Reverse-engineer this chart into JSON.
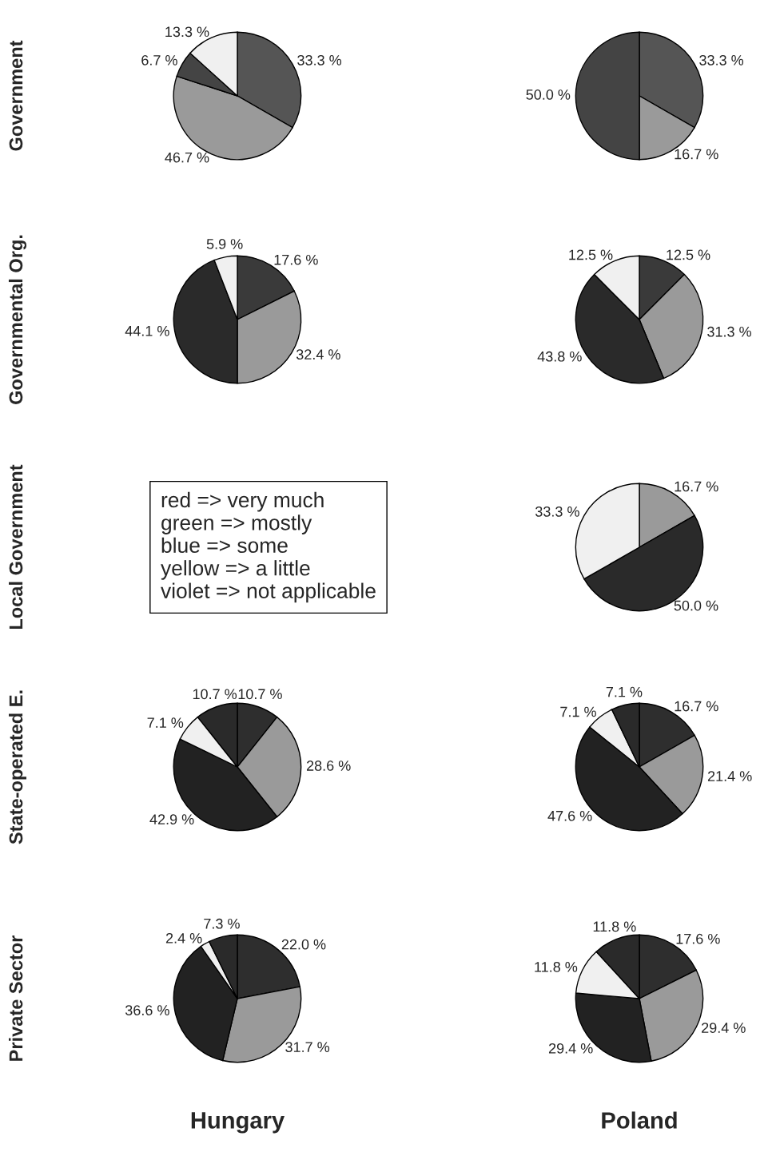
{
  "chart_data": [
    {
      "type": "pie",
      "ylabel": "Government",
      "categories": [
        null,
        null,
        null,
        null
      ],
      "values": [
        33.3,
        46.7,
        6.7,
        13.3
      ],
      "value_labels": [
        "33.3 %",
        "46.7 %",
        "6.7 %",
        "13.3 %"
      ],
      "colors": [
        "#555555",
        "#9a9a9a",
        "#444444",
        "#f0f0f0"
      ]
    },
    {
      "type": "pie",
      "categories": [
        null,
        null,
        null
      ],
      "values": [
        33.3,
        16.7,
        50.0
      ],
      "value_labels": [
        "33.3 %",
        "16.7 %",
        "50.0 %"
      ],
      "colors": [
        "#555555",
        "#9a9a9a",
        "#444444"
      ]
    },
    {
      "type": "pie",
      "ylabel": "Governmental Org.",
      "categories": [
        null,
        null,
        null,
        null
      ],
      "values": [
        17.6,
        32.4,
        44.1,
        5.9
      ],
      "value_labels": [
        "17.6 %",
        "32.4 %",
        "44.1 %",
        "5.9 %"
      ],
      "colors": [
        "#3a3a3a",
        "#9a9a9a",
        "#2a2a2a",
        "#f0f0f0"
      ]
    },
    {
      "type": "pie",
      "categories": [
        null,
        null,
        null,
        null
      ],
      "values": [
        12.5,
        31.3,
        43.8,
        12.5
      ],
      "value_labels": [
        "12.5 %",
        "31.3 %",
        "43.8 %",
        "12.5 %"
      ],
      "colors": [
        "#3a3a3a",
        "#9a9a9a",
        "#2a2a2a",
        "#f0f0f0"
      ]
    },
    {
      "type": "other",
      "ylabel": "Local Government",
      "annotations": [
        "red => very much\ngreen => mostly\nblue => some\nyellow => a little\nviolet => not applicable"
      ]
    },
    {
      "type": "pie",
      "categories": [
        null,
        null,
        null
      ],
      "values": [
        16.7,
        50.0,
        33.3
      ],
      "value_labels": [
        "16.7 %",
        "50.0 %",
        "33.3 %"
      ],
      "colors": [
        "#9a9a9a",
        "#2a2a2a",
        "#f0f0f0"
      ]
    },
    {
      "type": "pie",
      "ylabel": "State-operated E.",
      "categories": [
        null,
        null,
        null,
        null,
        null
      ],
      "values": [
        10.7,
        28.6,
        42.9,
        7.1,
        10.7
      ],
      "value_labels": [
        "10.7 %",
        "28.6 %",
        "42.9 %",
        "7.1 %",
        "10.7 %"
      ],
      "colors": [
        "#2e2e2e",
        "#9a9a9a",
        "#222222",
        "#f0f0f0",
        "#2a2a2a"
      ]
    },
    {
      "type": "pie",
      "categories": [
        null,
        null,
        null,
        null,
        null
      ],
      "values": [
        16.7,
        21.4,
        47.6,
        7.1,
        7.1
      ],
      "value_labels": [
        "16.7 %",
        "21.4 %",
        "47.6 %",
        "7.1 %",
        "7.1 %"
      ],
      "colors": [
        "#2e2e2e",
        "#9a9a9a",
        "#222222",
        "#f0f0f0",
        "#2a2a2a"
      ]
    },
    {
      "type": "pie",
      "ylabel": "Private Sector",
      "xlabel": "Hungary",
      "categories": [
        null,
        null,
        null,
        null,
        null
      ],
      "values": [
        22.0,
        31.7,
        36.6,
        2.4,
        7.3
      ],
      "value_labels": [
        "22.0 %",
        "31.7 %",
        "36.6 %",
        "2.4 %",
        "7.3 %"
      ],
      "colors": [
        "#2e2e2e",
        "#9a9a9a",
        "#222222",
        "#f0f0f0",
        "#2a2a2a"
      ]
    },
    {
      "type": "pie",
      "xlabel": "Poland",
      "categories": [
        null,
        null,
        null,
        null,
        null
      ],
      "values": [
        17.6,
        29.4,
        29.4,
        11.8,
        11.8
      ],
      "value_labels": [
        "17.6 %",
        "29.4 %",
        "29.4 %",
        "11.8 %",
        "11.8 %"
      ],
      "colors": [
        "#2e2e2e",
        "#9a9a9a",
        "#222222",
        "#f0f0f0",
        "#2a2a2a"
      ]
    }
  ]
}
